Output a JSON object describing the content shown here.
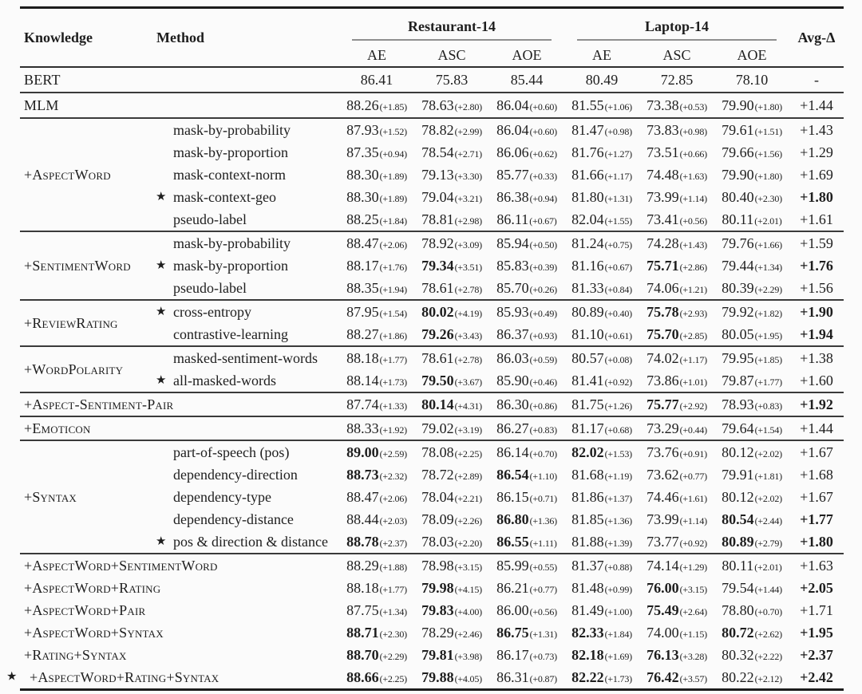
{
  "page": {
    "background": "#fbfbfb",
    "text_color": "#1e1e1e"
  },
  "star_glyph": "★",
  "header": {
    "knowledge": "Knowledge",
    "method": "Method",
    "group1": "Restaurant-14",
    "group2": "Laptop-14",
    "avg": "Avg-Δ",
    "subcols": [
      "AE",
      "ASC",
      "AOE",
      "AE",
      "ASC",
      "AOE"
    ]
  },
  "sections": [
    {
      "rows": [
        {
          "label": "BERT",
          "cells": [
            {
              "v": "86.41"
            },
            {
              "v": "75.83"
            },
            {
              "v": "85.44"
            },
            {
              "v": "80.49"
            },
            {
              "v": "72.85"
            },
            {
              "v": "78.10"
            }
          ],
          "avg": "-"
        }
      ]
    },
    {
      "rows": [
        {
          "label": "MLM",
          "cells": [
            {
              "v": "88.26",
              "d": "(+1.85)"
            },
            {
              "v": "78.63",
              "d": "(+2.80)"
            },
            {
              "v": "86.04",
              "d": "(+0.60)"
            },
            {
              "v": "81.55",
              "d": "(+1.06)"
            },
            {
              "v": "73.38",
              "d": "(+0.53)"
            },
            {
              "v": "79.90",
              "d": "(+1.80)"
            }
          ],
          "avg": "+1.44"
        }
      ]
    },
    {
      "knowledge": "+AspectWord",
      "rows": [
        {
          "method": "mask-by-probability",
          "cells": [
            {
              "v": "87.93",
              "d": "(+1.52)"
            },
            {
              "v": "78.82",
              "d": "(+2.99)"
            },
            {
              "v": "86.04",
              "d": "(+0.60)"
            },
            {
              "v": "81.47",
              "d": "(+0.98)"
            },
            {
              "v": "73.83",
              "d": "(+0.98)"
            },
            {
              "v": "79.61",
              "d": "(+1.51)"
            }
          ],
          "avg": "+1.43"
        },
        {
          "method": "mask-by-proportion",
          "cells": [
            {
              "v": "87.35",
              "d": "(+0.94)"
            },
            {
              "v": "78.54",
              "d": "(+2.71)"
            },
            {
              "v": "86.06",
              "d": "(+0.62)"
            },
            {
              "v": "81.76",
              "d": "(+1.27)"
            },
            {
              "v": "73.51",
              "d": "(+0.66)"
            },
            {
              "v": "79.66",
              "d": "(+1.56)"
            }
          ],
          "avg": "+1.29"
        },
        {
          "method": "mask-context-norm",
          "cells": [
            {
              "v": "88.30",
              "d": "(+1.89)"
            },
            {
              "v": "79.13",
              "d": "(+3.30)"
            },
            {
              "v": "85.77",
              "d": "(+0.33)"
            },
            {
              "v": "81.66",
              "d": "(+1.17)"
            },
            {
              "v": "74.48",
              "d": "(+1.63)"
            },
            {
              "v": "79.90",
              "d": "(+1.80)"
            }
          ],
          "avg": "+1.69"
        },
        {
          "star": true,
          "method": "mask-context-geo",
          "cells": [
            {
              "v": "88.30",
              "d": "(+1.89)"
            },
            {
              "v": "79.04",
              "d": "(+3.21)"
            },
            {
              "v": "86.38",
              "d": "(+0.94)"
            },
            {
              "v": "81.80",
              "d": "(+1.31)"
            },
            {
              "v": "73.99",
              "d": "(+1.14)"
            },
            {
              "v": "80.40",
              "d": "(+2.30)"
            }
          ],
          "avg": "+1.80",
          "avgb": true
        },
        {
          "method": "pseudo-label",
          "cells": [
            {
              "v": "88.25",
              "d": "(+1.84)"
            },
            {
              "v": "78.81",
              "d": "(+2.98)"
            },
            {
              "v": "86.11",
              "d": "(+0.67)"
            },
            {
              "v": "82.04",
              "d": "(+1.55)"
            },
            {
              "v": "73.41",
              "d": "(+0.56)"
            },
            {
              "v": "80.11",
              "d": "(+2.01)"
            }
          ],
          "avg": "+1.61"
        }
      ]
    },
    {
      "knowledge": "+SentimentWord",
      "rows": [
        {
          "method": "mask-by-probability",
          "cells": [
            {
              "v": "88.47",
              "d": "(+2.06)"
            },
            {
              "v": "78.92",
              "d": "(+3.09)"
            },
            {
              "v": "85.94",
              "d": "(+0.50)"
            },
            {
              "v": "81.24",
              "d": "(+0.75)"
            },
            {
              "v": "74.28",
              "d": "(+1.43)"
            },
            {
              "v": "79.76",
              "d": "(+1.66)"
            }
          ],
          "avg": "+1.59"
        },
        {
          "star": true,
          "method": "mask-by-proportion",
          "cells": [
            {
              "v": "88.17",
              "d": "(+1.76)"
            },
            {
              "v": "79.34",
              "d": "(+3.51)",
              "b": true
            },
            {
              "v": "85.83",
              "d": "(+0.39)"
            },
            {
              "v": "81.16",
              "d": "(+0.67)"
            },
            {
              "v": "75.71",
              "d": "(+2.86)",
              "b": true
            },
            {
              "v": "79.44",
              "d": "(+1.34)"
            }
          ],
          "avg": "+1.76",
          "avgb": true
        },
        {
          "method": "pseudo-label",
          "cells": [
            {
              "v": "88.35",
              "d": "(+1.94)"
            },
            {
              "v": "78.61",
              "d": "(+2.78)"
            },
            {
              "v": "85.70",
              "d": "(+0.26)"
            },
            {
              "v": "81.33",
              "d": "(+0.84)"
            },
            {
              "v": "74.06",
              "d": "(+1.21)"
            },
            {
              "v": "80.39",
              "d": "(+2.29)"
            }
          ],
          "avg": "+1.56"
        }
      ]
    },
    {
      "knowledge": "+ReviewRating",
      "rows": [
        {
          "star": true,
          "method": "cross-entropy",
          "cells": [
            {
              "v": "87.95",
              "d": "(+1.54)"
            },
            {
              "v": "80.02",
              "d": "(+4.19)",
              "b": true
            },
            {
              "v": "85.93",
              "d": "(+0.49)"
            },
            {
              "v": "80.89",
              "d": "(+0.40)"
            },
            {
              "v": "75.78",
              "d": "(+2.93)",
              "b": true
            },
            {
              "v": "79.92",
              "d": "(+1.82)"
            }
          ],
          "avg": "+1.90",
          "avgb": true
        },
        {
          "method": "contrastive-learning",
          "cells": [
            {
              "v": "88.27",
              "d": "(+1.86)"
            },
            {
              "v": "79.26",
              "d": "(+3.43)",
              "b": true
            },
            {
              "v": "86.37",
              "d": "(+0.93)"
            },
            {
              "v": "81.10",
              "d": "(+0.61)"
            },
            {
              "v": "75.70",
              "d": "(+2.85)",
              "b": true
            },
            {
              "v": "80.05",
              "d": "(+1.95)"
            }
          ],
          "avg": "+1.94",
          "avgb": true
        }
      ]
    },
    {
      "knowledge": "+WordPolarity",
      "rows": [
        {
          "method": "masked-sentiment-words",
          "cells": [
            {
              "v": "88.18",
              "d": "(+1.77)"
            },
            {
              "v": "78.61",
              "d": "(+2.78)"
            },
            {
              "v": "86.03",
              "d": "(+0.59)"
            },
            {
              "v": "80.57",
              "d": "(+0.08)"
            },
            {
              "v": "74.02",
              "d": "(+1.17)"
            },
            {
              "v": "79.95",
              "d": "(+1.85)"
            }
          ],
          "avg": "+1.38"
        },
        {
          "star": true,
          "method": "all-masked-words",
          "cells": [
            {
              "v": "88.14",
              "d": "(+1.73)"
            },
            {
              "v": "79.50",
              "d": "(+3.67)",
              "b": true
            },
            {
              "v": "85.90",
              "d": "(+0.46)"
            },
            {
              "v": "81.41",
              "d": "(+0.92)"
            },
            {
              "v": "73.86",
              "d": "(+1.01)"
            },
            {
              "v": "79.87",
              "d": "(+1.77)"
            }
          ],
          "avg": "+1.60"
        }
      ]
    },
    {
      "rows": [
        {
          "label": "+Aspect-Sentiment-Pair",
          "cells": [
            {
              "v": "87.74",
              "d": "(+1.33)"
            },
            {
              "v": "80.14",
              "d": "(+4.31)",
              "b": true
            },
            {
              "v": "86.30",
              "d": "(+0.86)"
            },
            {
              "v": "81.75",
              "d": "(+1.26)"
            },
            {
              "v": "75.77",
              "d": "(+2.92)",
              "b": true
            },
            {
              "v": "78.93",
              "d": "(+0.83)"
            }
          ],
          "avg": "+1.92",
          "avgb": true
        }
      ]
    },
    {
      "rows": [
        {
          "label": "+Emoticon",
          "cells": [
            {
              "v": "88.33",
              "d": "(+1.92)"
            },
            {
              "v": "79.02",
              "d": "(+3.19)"
            },
            {
              "v": "86.27",
              "d": "(+0.83)"
            },
            {
              "v": "81.17",
              "d": "(+0.68)"
            },
            {
              "v": "73.29",
              "d": "(+0.44)"
            },
            {
              "v": "79.64",
              "d": "(+1.54)"
            }
          ],
          "avg": "+1.44"
        }
      ]
    },
    {
      "knowledge": "+Syntax",
      "rows": [
        {
          "method": "part-of-speech (pos)",
          "cells": [
            {
              "v": "89.00",
              "d": "(+2.59)",
              "b": true
            },
            {
              "v": "78.08",
              "d": "(+2.25)"
            },
            {
              "v": "86.14",
              "d": "(+0.70)"
            },
            {
              "v": "82.02",
              "d": "(+1.53)",
              "b": true
            },
            {
              "v": "73.76",
              "d": "(+0.91)"
            },
            {
              "v": "80.12",
              "d": "(+2.02)"
            }
          ],
          "avg": "+1.67"
        },
        {
          "method": "dependency-direction",
          "cells": [
            {
              "v": "88.73",
              "d": "(+2.32)",
              "b": true
            },
            {
              "v": "78.72",
              "d": "(+2.89)"
            },
            {
              "v": "86.54",
              "d": "(+1.10)",
              "b": true
            },
            {
              "v": "81.68",
              "d": "(+1.19)"
            },
            {
              "v": "73.62",
              "d": "(+0.77)"
            },
            {
              "v": "79.91",
              "d": "(+1.81)"
            }
          ],
          "avg": "+1.68"
        },
        {
          "method": "dependency-type",
          "cells": [
            {
              "v": "88.47",
              "d": "(+2.06)"
            },
            {
              "v": "78.04",
              "d": "(+2.21)"
            },
            {
              "v": "86.15",
              "d": "(+0.71)"
            },
            {
              "v": "81.86",
              "d": "(+1.37)"
            },
            {
              "v": "74.46",
              "d": "(+1.61)"
            },
            {
              "v": "80.12",
              "d": "(+2.02)"
            }
          ],
          "avg": "+1.67"
        },
        {
          "method": "dependency-distance",
          "cells": [
            {
              "v": "88.44",
              "d": "(+2.03)"
            },
            {
              "v": "78.09",
              "d": "(+2.26)"
            },
            {
              "v": "86.80",
              "d": "(+1.36)",
              "b": true
            },
            {
              "v": "81.85",
              "d": "(+1.36)"
            },
            {
              "v": "73.99",
              "d": "(+1.14)"
            },
            {
              "v": "80.54",
              "d": "(+2.44)",
              "b": true
            }
          ],
          "avg": "+1.77",
          "avgb": true
        },
        {
          "star": true,
          "method": "pos & direction & distance",
          "cells": [
            {
              "v": "88.78",
              "d": "(+2.37)",
              "b": true
            },
            {
              "v": "78.03",
              "d": "(+2.20)"
            },
            {
              "v": "86.55",
              "d": "(+1.11)",
              "b": true
            },
            {
              "v": "81.88",
              "d": "(+1.39)"
            },
            {
              "v": "73.77",
              "d": "(+0.92)"
            },
            {
              "v": "80.89",
              "d": "(+2.79)",
              "b": true
            }
          ],
          "avg": "+1.80",
          "avgb": true
        }
      ]
    },
    {
      "rows": [
        {
          "label": "+AspectWord+SentimentWord",
          "cells": [
            {
              "v": "88.29",
              "d": "(+1.88)"
            },
            {
              "v": "78.98",
              "d": "(+3.15)"
            },
            {
              "v": "85.99",
              "d": "(+0.55)"
            },
            {
              "v": "81.37",
              "d": "(+0.88)"
            },
            {
              "v": "74.14",
              "d": "(+1.29)"
            },
            {
              "v": "80.11",
              "d": "(+2.01)"
            }
          ],
          "avg": "+1.63"
        },
        {
          "label": "+AspectWord+Rating",
          "cells": [
            {
              "v": "88.18",
              "d": "(+1.77)"
            },
            {
              "v": "79.98",
              "d": "(+4.15)",
              "b": true
            },
            {
              "v": "86.21",
              "d": "(+0.77)"
            },
            {
              "v": "81.48",
              "d": "(+0.99)"
            },
            {
              "v": "76.00",
              "d": "(+3.15)",
              "b": true
            },
            {
              "v": "79.54",
              "d": "(+1.44)"
            }
          ],
          "avg": "+2.05",
          "avgb": true
        },
        {
          "label": "+AspectWord+Pair",
          "cells": [
            {
              "v": "87.75",
              "d": "(+1.34)"
            },
            {
              "v": "79.83",
              "d": "(+4.00)",
              "b": true
            },
            {
              "v": "86.00",
              "d": "(+0.56)"
            },
            {
              "v": "81.49",
              "d": "(+1.00)"
            },
            {
              "v": "75.49",
              "d": "(+2.64)",
              "b": true
            },
            {
              "v": "78.80",
              "d": "(+0.70)"
            }
          ],
          "avg": "+1.71"
        },
        {
          "label": "+AspectWord+Syntax",
          "cells": [
            {
              "v": "88.71",
              "d": "(+2.30)",
              "b": true
            },
            {
              "v": "78.29",
              "d": "(+2.46)"
            },
            {
              "v": "86.75",
              "d": "(+1.31)",
              "b": true
            },
            {
              "v": "82.33",
              "d": "(+1.84)",
              "b": true
            },
            {
              "v": "74.00",
              "d": "(+1.15)"
            },
            {
              "v": "80.72",
              "d": "(+2.62)",
              "b": true
            }
          ],
          "avg": "+1.95",
          "avgb": true
        },
        {
          "label": "+Rating+Syntax",
          "cells": [
            {
              "v": "88.70",
              "d": "(+2.29)",
              "b": true
            },
            {
              "v": "79.81",
              "d": "(+3.98)",
              "b": true
            },
            {
              "v": "86.17",
              "d": "(+0.73)"
            },
            {
              "v": "82.18",
              "d": "(+1.69)",
              "b": true
            },
            {
              "v": "76.13",
              "d": "(+3.28)",
              "b": true
            },
            {
              "v": "80.32",
              "d": "(+2.22)"
            }
          ],
          "avg": "+2.37",
          "avgb": true
        },
        {
          "kstar": true,
          "label": "+AspectWord+Rating+Syntax",
          "cells": [
            {
              "v": "88.66",
              "d": "(+2.25)",
              "b": true
            },
            {
              "v": "79.88",
              "d": "(+4.05)",
              "b": true
            },
            {
              "v": "86.31",
              "d": "(+0.87)"
            },
            {
              "v": "82.22",
              "d": "(+1.73)",
              "b": true
            },
            {
              "v": "76.42",
              "d": "(+3.57)",
              "b": true
            },
            {
              "v": "80.22",
              "d": "(+2.12)"
            }
          ],
          "avg": "+2.42",
          "avgb": true
        }
      ]
    }
  ]
}
